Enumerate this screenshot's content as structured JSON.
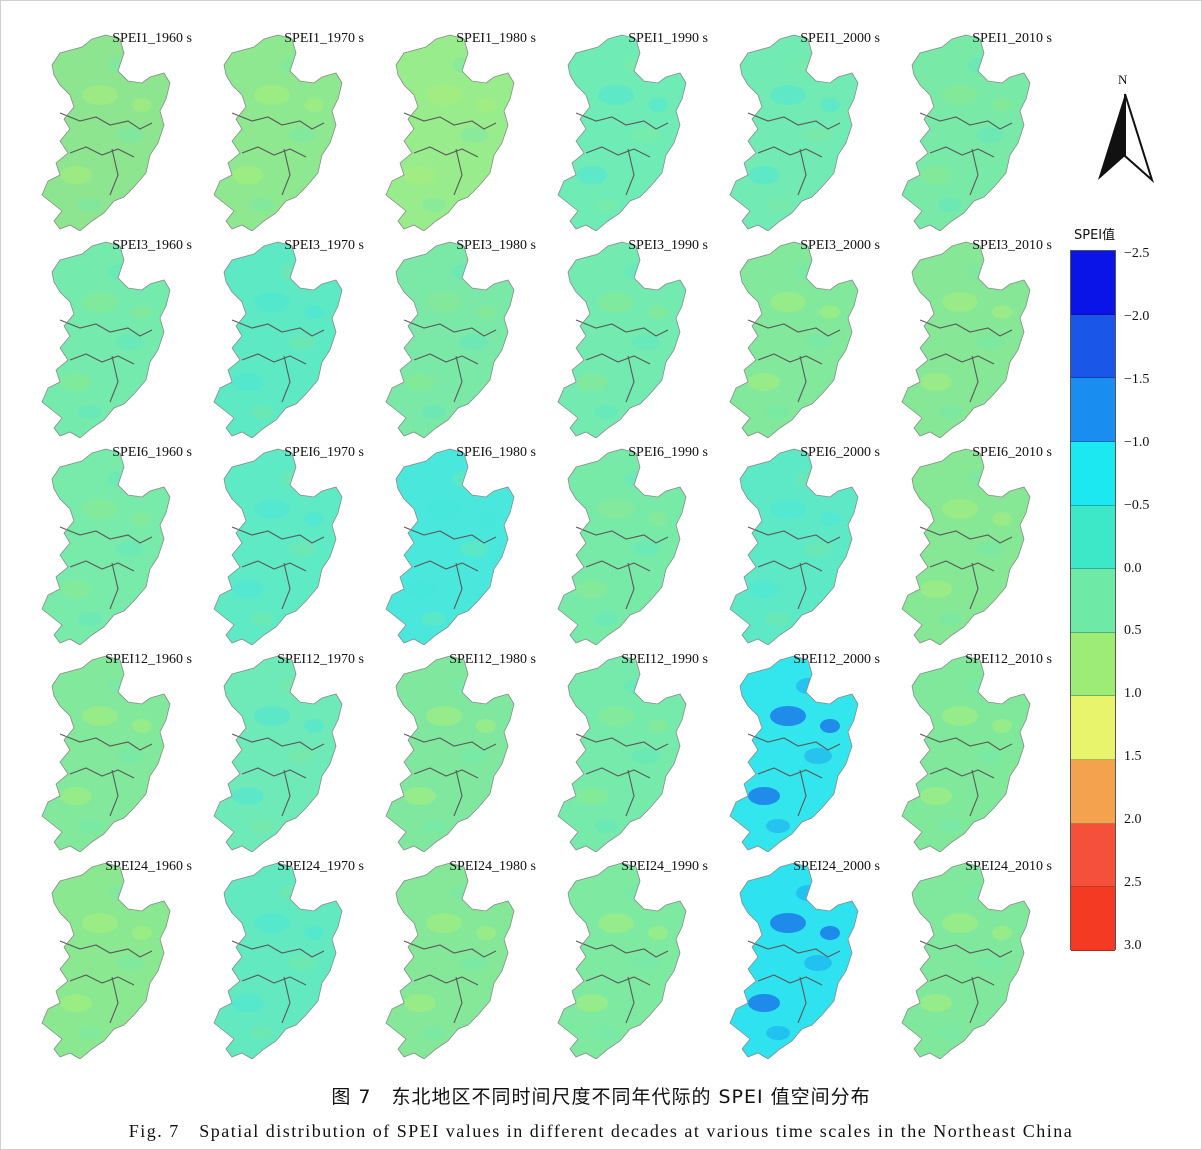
{
  "figure": {
    "caption_cn": "图 7　东北地区不同时间尺度不同年代际的 SPEI 值空间分布",
    "caption_en": "Fig. 7　Spatial distribution of SPEI values in different decades at various time scales in the Northeast China"
  },
  "map": {
    "north_label": "N",
    "boundary_color": "#5a5a5a",
    "panels": [
      {
        "label": "SPEI1_1960 s",
        "fill": "#8de58f",
        "tone": "dry"
      },
      {
        "label": "SPEI1_1970 s",
        "fill": "#8ee890",
        "tone": "dry"
      },
      {
        "label": "SPEI1_1980 s",
        "fill": "#99ec8c",
        "tone": "dry"
      },
      {
        "label": "SPEI1_1990 s",
        "fill": "#6fecb6",
        "tone": "wet"
      },
      {
        "label": "SPEI1_2000 s",
        "fill": "#72eab4",
        "tone": "wet"
      },
      {
        "label": "SPEI1_2010 s",
        "fill": "#79e9a8",
        "tone": "mixed"
      },
      {
        "label": "SPEI3_1960 s",
        "fill": "#74eaac",
        "tone": "mixed"
      },
      {
        "label": "SPEI3_1970 s",
        "fill": "#5de9c3",
        "tone": "wet"
      },
      {
        "label": "SPEI3_1980 s",
        "fill": "#7ae9a8",
        "tone": "mixed"
      },
      {
        "label": "SPEI3_1990 s",
        "fill": "#72eab0",
        "tone": "mixed"
      },
      {
        "label": "SPEI3_2000 s",
        "fill": "#82e89c",
        "tone": "dry"
      },
      {
        "label": "SPEI3_2010 s",
        "fill": "#86e796",
        "tone": "dry"
      },
      {
        "label": "SPEI6_1960 s",
        "fill": "#78eaaa",
        "tone": "mixed"
      },
      {
        "label": "SPEI6_1970 s",
        "fill": "#5feac6",
        "tone": "wet"
      },
      {
        "label": "SPEI6_1980 s",
        "fill": "#4ae8dc",
        "tone": "wet"
      },
      {
        "label": "SPEI6_1990 s",
        "fill": "#78eaa8",
        "tone": "mixed"
      },
      {
        "label": "SPEI6_2000 s",
        "fill": "#5ee9c6",
        "tone": "wet"
      },
      {
        "label": "SPEI6_2010 s",
        "fill": "#86e795",
        "tone": "dry"
      },
      {
        "label": "SPEI12_1960 s",
        "fill": "#82e89c",
        "tone": "dry"
      },
      {
        "label": "SPEI12_1970 s",
        "fill": "#6ee9b8",
        "tone": "wet"
      },
      {
        "label": "SPEI12_1980 s",
        "fill": "#80e89e",
        "tone": "dry"
      },
      {
        "label": "SPEI12_1990 s",
        "fill": "#76eaaa",
        "tone": "mixed"
      },
      {
        "label": "SPEI12_2000 s",
        "fill": "#33e5ec",
        "tone": "verywet"
      },
      {
        "label": "SPEI12_2010 s",
        "fill": "#80e89a",
        "tone": "dry"
      },
      {
        "label": "SPEI24_1960 s",
        "fill": "#8ae890",
        "tone": "dry"
      },
      {
        "label": "SPEI24_1970 s",
        "fill": "#62e9c0",
        "tone": "wet"
      },
      {
        "label": "SPEI24_1980 s",
        "fill": "#84e898",
        "tone": "dry"
      },
      {
        "label": "SPEI24_1990 s",
        "fill": "#7ee9a0",
        "tone": "dry"
      },
      {
        "label": "SPEI24_2000 s",
        "fill": "#2ee2ef",
        "tone": "verywet"
      },
      {
        "label": "SPEI24_2010 s",
        "fill": "#80e89c",
        "tone": "dry"
      }
    ]
  },
  "legend": {
    "title": "SPEI值",
    "bins": [
      {
        "color": "#0a14e8"
      },
      {
        "color": "#1a56e8"
      },
      {
        "color": "#1a8ef0"
      },
      {
        "color": "#1ce8f2"
      },
      {
        "color": "#3ce8c8"
      },
      {
        "color": "#6eeaa6"
      },
      {
        "color": "#9cec76"
      },
      {
        "color": "#e8f56c"
      },
      {
        "color": "#f5a24e"
      },
      {
        "color": "#f5503a"
      },
      {
        "color": "#f53a24"
      }
    ],
    "ticks": [
      "−2.5",
      "−2.0",
      "−1.5",
      "−1.0",
      "−0.5",
      "0.0",
      "0.5",
      "1.0",
      "1.5",
      "2.0",
      "2.5",
      "3.0"
    ]
  }
}
